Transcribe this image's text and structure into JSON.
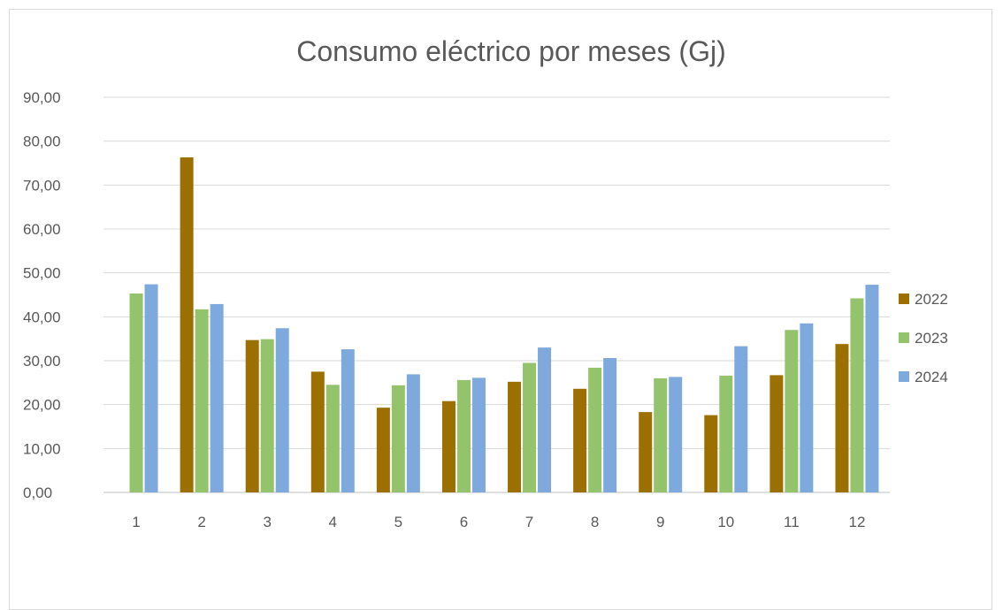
{
  "chart_data": {
    "type": "bar",
    "title": "Consumo eléctrico por meses (Gj)",
    "xlabel": "",
    "ylabel": "",
    "categories": [
      "1",
      "2",
      "3",
      "4",
      "5",
      "6",
      "7",
      "8",
      "9",
      "10",
      "11",
      "12"
    ],
    "series": [
      {
        "name": "2022",
        "color": "#9c7000",
        "values": [
          0,
          76.3,
          34.7,
          27.5,
          19.3,
          20.8,
          25.2,
          23.6,
          18.3,
          17.6,
          26.7,
          33.8
        ]
      },
      {
        "name": "2023",
        "color": "#93c36b",
        "values": [
          45.3,
          41.7,
          34.9,
          24.5,
          24.4,
          25.6,
          29.5,
          28.4,
          26.0,
          26.6,
          37.0,
          44.2
        ]
      },
      {
        "name": "2024",
        "color": "#7ea9dc",
        "values": [
          47.4,
          42.9,
          37.4,
          32.6,
          26.9,
          26.1,
          33.0,
          30.6,
          26.3,
          33.3,
          38.5,
          47.3
        ]
      }
    ],
    "ylim": [
      0,
      90
    ],
    "yticks": [
      "0,00",
      "10,00",
      "20,00",
      "30,00",
      "40,00",
      "50,00",
      "60,00",
      "70,00",
      "80,00",
      "90,00"
    ],
    "grid": true,
    "legend_position": "right"
  }
}
